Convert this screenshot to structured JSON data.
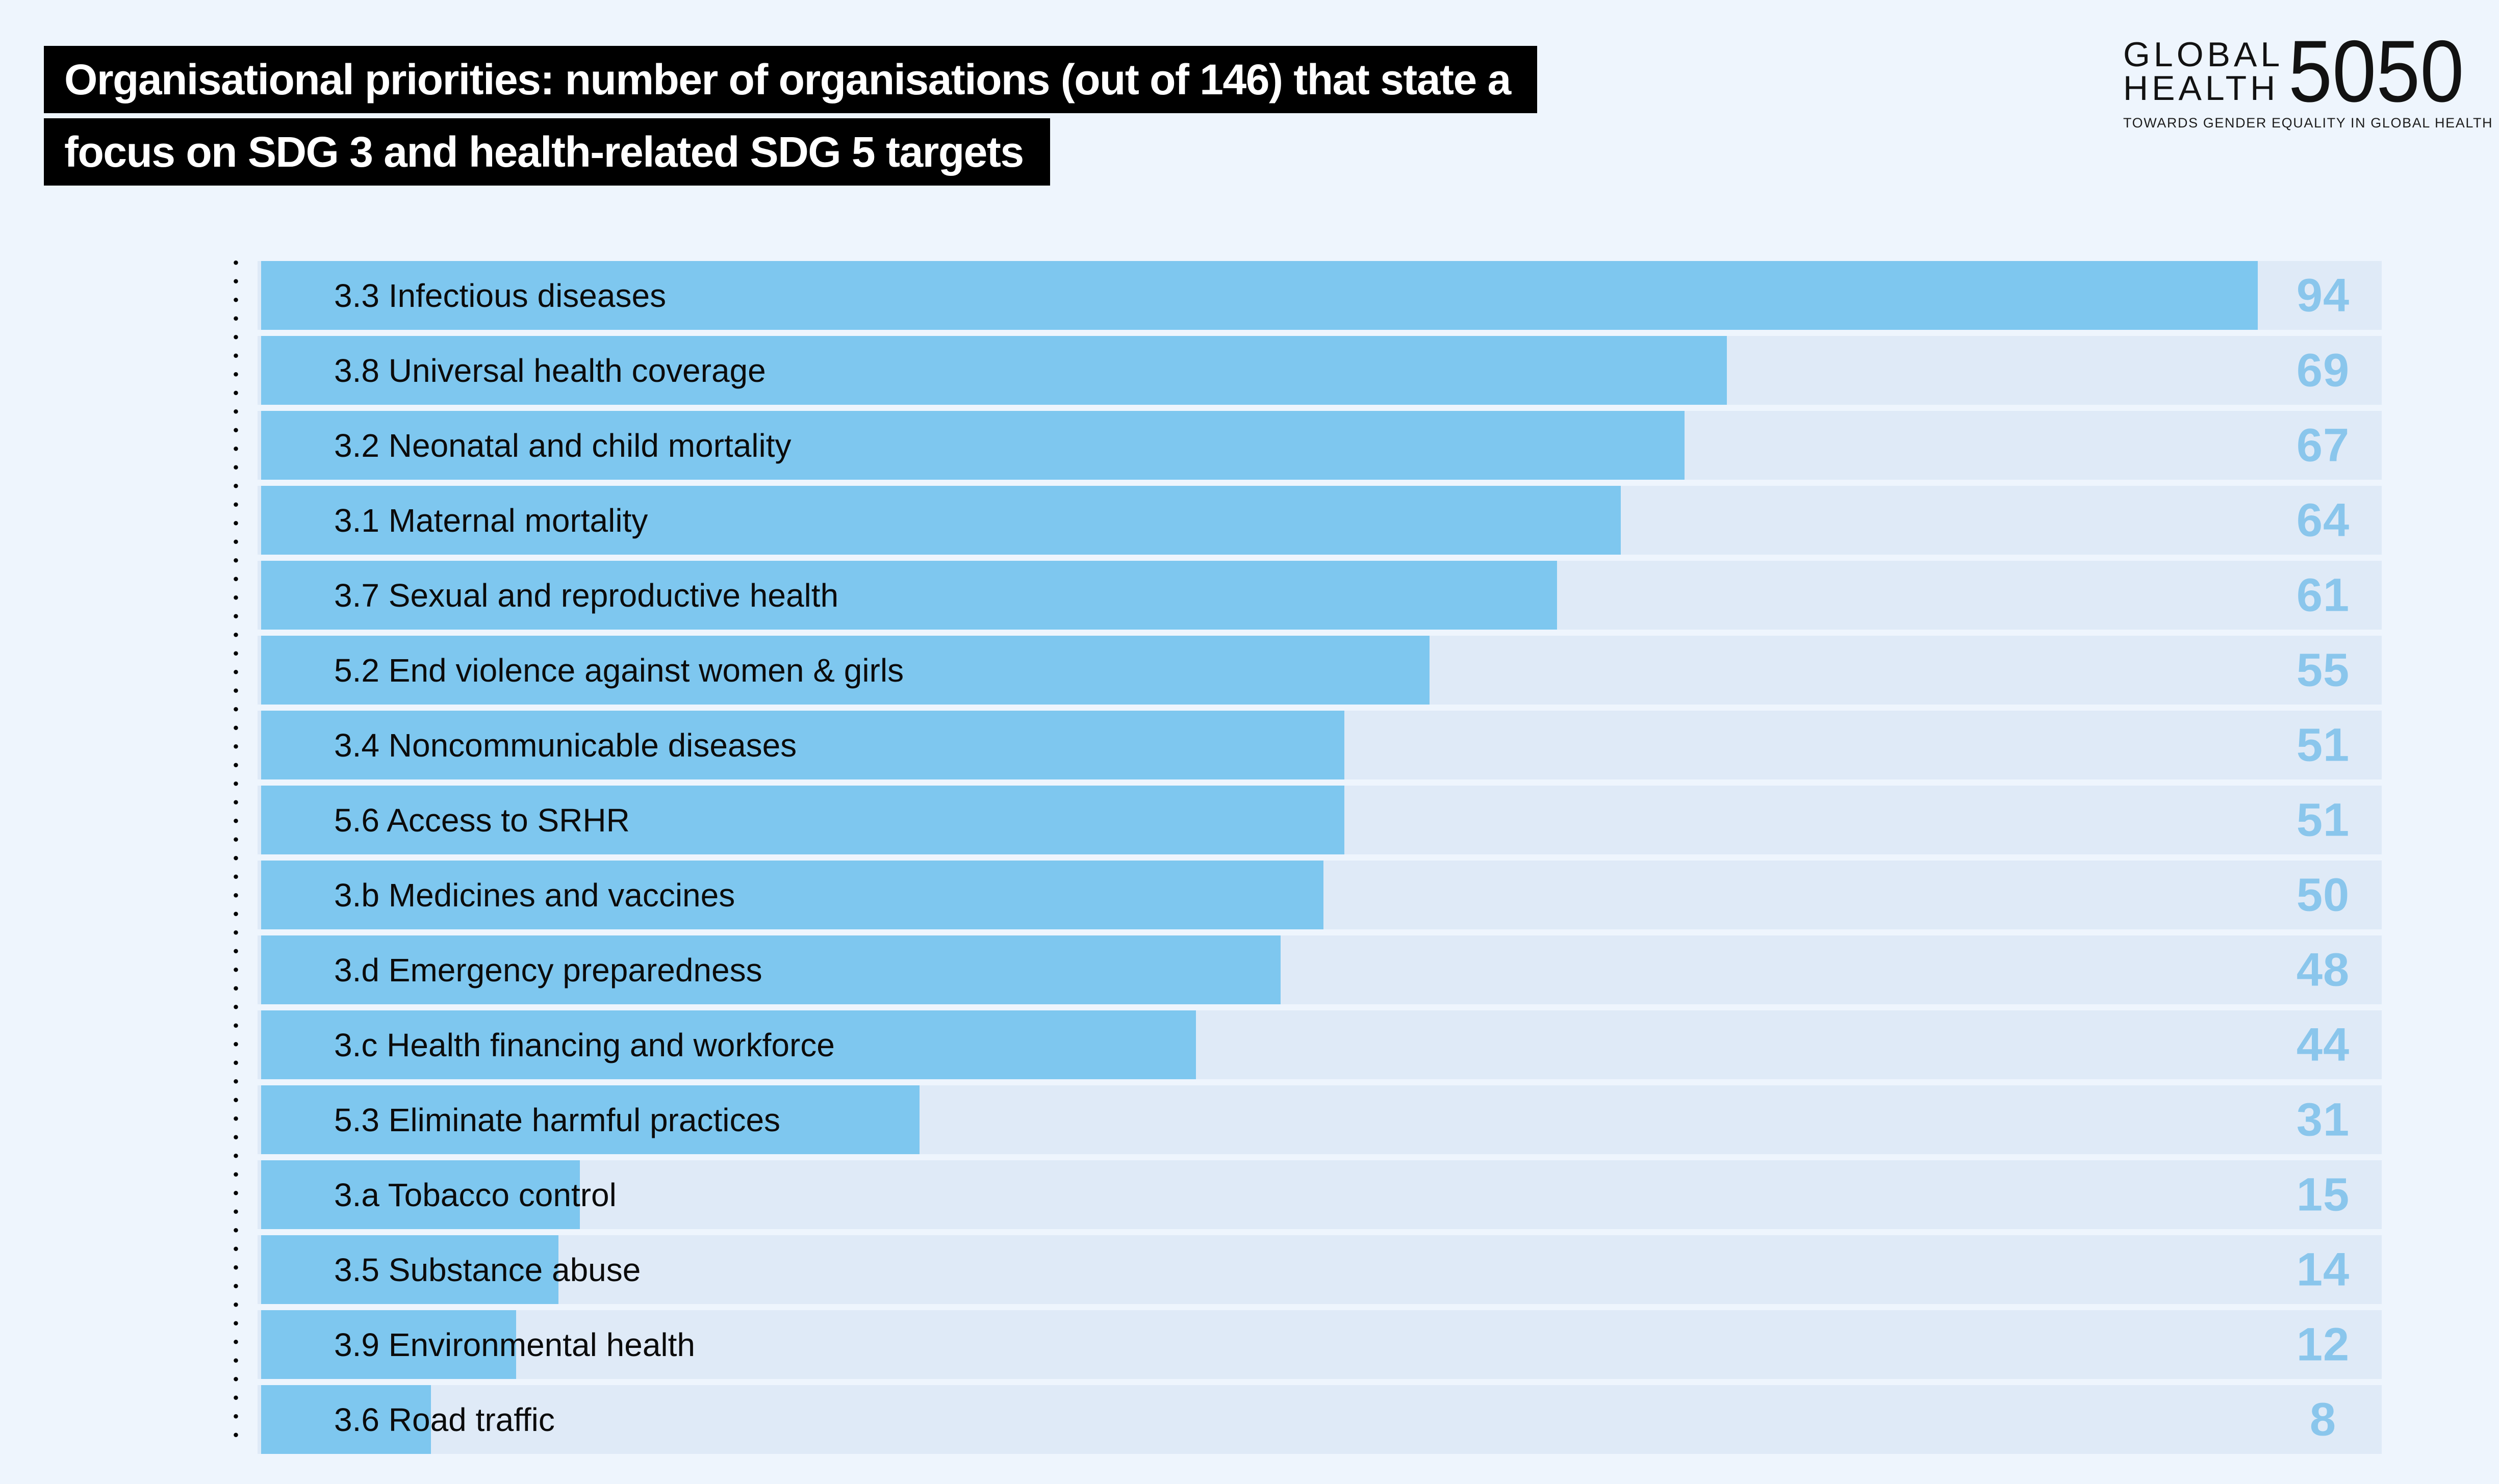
{
  "header": {
    "title_line1": "Organisational priorities: number of organisations (out of 146) that state a",
    "title_line2": "focus on SDG 3 and health-related SDG 5 targets",
    "title_bg_color": "#000000",
    "title_text_color": "#ffffff"
  },
  "logo": {
    "word1": "GLOBAL",
    "word2": "HEALTH",
    "number": "5050",
    "tagline": "TOWARDS GENDER EQUALITY IN GLOBAL HEALTH"
  },
  "chart_data": {
    "type": "bar",
    "orientation": "horizontal",
    "title": "Organisational priorities: number of organisations (out of 146) that state a focus on SDG 3 and health-related SDG 5 targets",
    "categories": [
      "3.3 Infectious diseases",
      "3.8 Universal health coverage",
      "3.2 Neonatal and child mortality",
      "3.1 Maternal mortality",
      "3.7 Sexual and reproductive health",
      "5.2 End violence against women & girls",
      "3.4 Noncommunicable diseases",
      "5.6 Access to SRHR",
      "3.b Medicines and vaccines",
      "3.d Emergency preparedness",
      "3.c Health financing and workforce",
      "5.3 Eliminate harmful practices",
      "3.a Tobacco control",
      "3.5 Substance abuse",
      "3.9 Environmental health",
      "3.6 Road traffic"
    ],
    "values": [
      94,
      69,
      67,
      64,
      61,
      55,
      51,
      51,
      50,
      48,
      44,
      31,
      15,
      14,
      12,
      8
    ],
    "xlim": [
      0,
      100
    ],
    "grid": false,
    "legend": false,
    "value_labels_position": "right",
    "colors": {
      "bar": "#7ec7ef",
      "track": "#dfeaf7",
      "value_text": "#8ac6ec",
      "label_text": "#0b0b0b",
      "background": "#eef5fd",
      "axis_dots": "#000000"
    }
  }
}
